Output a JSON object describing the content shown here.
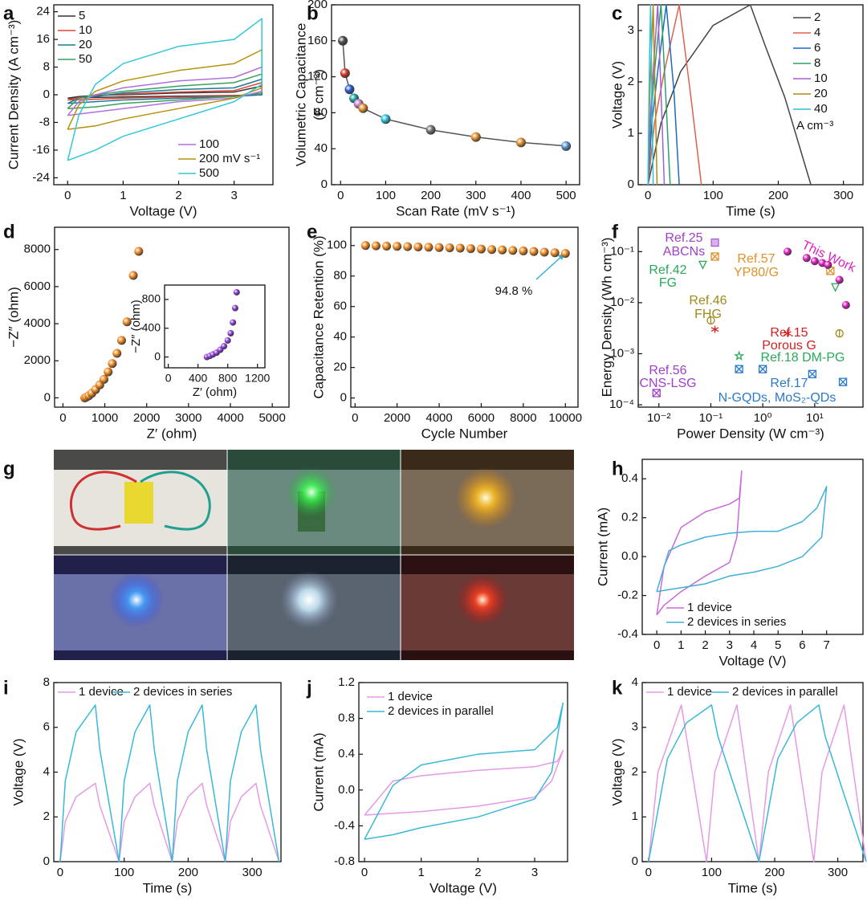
{
  "photo_panel": {
    "panel": "g"
  },
  "chart_data": [
    {
      "panel": "a",
      "type": "line",
      "xlabel": "Voltage (V)",
      "ylabel": "Current Density (A cm⁻³)",
      "xlim": [
        -0.25,
        3.7
      ],
      "ylim": [
        -26,
        26
      ],
      "xticks": [
        0,
        1,
        2,
        3
      ],
      "yticks": [
        -24,
        -16,
        -8,
        0,
        8,
        16,
        24
      ],
      "x": [
        0,
        0.2,
        0.5,
        1,
        2,
        3,
        3.5,
        3.5,
        3,
        2,
        1,
        0.5,
        0
      ],
      "series": [
        {
          "name": "5",
          "color": "#333333",
          "values": [
            -1,
            -0.5,
            -0.2,
            0,
            0.5,
            0.8,
            2.5,
            0,
            -0.2,
            -0.4,
            -0.6,
            -0.8,
            -1
          ]
        },
        {
          "name": "10",
          "color": "#e0453a",
          "values": [
            -1.5,
            -0.8,
            -0.3,
            0.2,
            0.8,
            1.2,
            3.5,
            0,
            -0.3,
            -0.6,
            -1,
            -1.3,
            -1.5
          ]
        },
        {
          "name": "20",
          "color": "#1a7a9a",
          "values": [
            -2.5,
            -1,
            -0.5,
            0.5,
            1.5,
            2,
            4.5,
            0,
            -0.5,
            -1,
            -1.5,
            -2,
            -2.5
          ]
        },
        {
          "name": "50",
          "color": "#3aa05a",
          "values": [
            -4,
            -1,
            0,
            1,
            2.5,
            3.5,
            6,
            0.5,
            -0.5,
            -1.5,
            -2.5,
            -3.5,
            -4
          ]
        },
        {
          "name": "100",
          "color": "#b070e0",
          "values": [
            -6,
            -2,
            0,
            2,
            4,
            5,
            8,
            1,
            -1,
            -2,
            -4,
            -5,
            -6
          ]
        },
        {
          "name": "200 mV s⁻¹",
          "color": "#b8900a",
          "values": [
            -10,
            -3,
            1,
            4,
            7,
            9,
            13,
            2,
            -1,
            -4,
            -7,
            -9,
            -10
          ]
        },
        {
          "name": "500",
          "color": "#30c8d8",
          "values": [
            -19,
            -6,
            3,
            9,
            14,
            16,
            22,
            3,
            -2,
            -7,
            -12,
            -16,
            -19
          ]
        }
      ]
    },
    {
      "panel": "b",
      "type": "line",
      "markers": "ball",
      "xlabel": "Scan Rate (mV s⁻¹)",
      "ylabel": [
        "Volumetric Capacitance",
        "(F cm⁻³)"
      ],
      "xlim": [
        -20,
        530
      ],
      "ylim": [
        0,
        200
      ],
      "xticks": [
        0,
        100,
        200,
        300,
        400,
        500
      ],
      "yticks": [
        0,
        40,
        80,
        120,
        160,
        200
      ],
      "x": [
        5,
        10,
        20,
        30,
        40,
        50,
        100,
        200,
        300,
        400,
        500
      ],
      "values": [
        160,
        124,
        106,
        96,
        90,
        85,
        73,
        61,
        53,
        47,
        43
      ],
      "line_color": "#555555",
      "point_colors": [
        "#4a4a4a",
        "#d03a2a",
        "#2a5ac8",
        "#1aa0a0",
        "#c080d0",
        "#e0902a",
        "#30c0d8",
        "#707070",
        "#e0902a",
        "#e0902a",
        "#5a90d0"
      ]
    },
    {
      "panel": "c",
      "type": "line",
      "xlabel": "Time (s)",
      "ylabel": "Voltage (V)",
      "legend_unit": "A cm⁻³",
      "xlim": [
        -15,
        330
      ],
      "ylim": [
        0,
        3.5
      ],
      "xticks": [
        0,
        100,
        200,
        300
      ],
      "yticks": [
        0,
        1,
        2,
        3
      ],
      "series": [
        {
          "name": "2",
          "color": "#444444",
          "x": [
            0,
            20,
            50,
            100,
            157,
            180,
            210,
            250
          ],
          "values": [
            0,
            1.2,
            2.2,
            3.1,
            3.5,
            2.7,
            1.7,
            0
          ]
        },
        {
          "name": "4",
          "color": "#e06050",
          "x": [
            0,
            10,
            25,
            48,
            55,
            65,
            82
          ],
          "values": [
            0,
            1.2,
            2.2,
            3.5,
            2.8,
            1.8,
            0
          ]
        },
        {
          "name": "6",
          "color": "#1a6ac0",
          "x": [
            0,
            6,
            15,
            28,
            33,
            40,
            48
          ],
          "values": [
            0,
            1.2,
            2.2,
            3.5,
            2.8,
            1.8,
            0
          ]
        },
        {
          "name": "8",
          "color": "#2aa06a",
          "x": [
            0,
            4,
            10,
            20,
            23,
            27,
            34
          ],
          "values": [
            0,
            1.2,
            2.2,
            3.5,
            2.8,
            1.8,
            0
          ]
        },
        {
          "name": "10",
          "color": "#a060d0",
          "x": [
            0,
            3,
            8,
            15,
            17,
            20,
            25
          ],
          "values": [
            0,
            1.2,
            2.2,
            3.5,
            2.8,
            1.8,
            0
          ]
        },
        {
          "name": "20",
          "color": "#b08a10",
          "x": [
            0,
            1.5,
            4,
            8,
            9,
            11,
            14
          ],
          "values": [
            0,
            1.2,
            2.2,
            3.5,
            2.8,
            1.8,
            0
          ]
        },
        {
          "name": "40",
          "color": "#30c0d8",
          "x": [
            0,
            1,
            2,
            4,
            5,
            6,
            8
          ],
          "values": [
            0,
            1.2,
            2.2,
            3.5,
            2.8,
            1.8,
            0
          ]
        }
      ]
    },
    {
      "panel": "d",
      "type": "scatter",
      "xlabel": "Z′ (ohm)",
      "ylabel": "−Z″ (ohm)",
      "color": "#f08a20",
      "xlim": [
        -200,
        5400
      ],
      "ylim": [
        -500,
        9200
      ],
      "xticks": [
        0,
        1000,
        2000,
        3000,
        4000,
        5000
      ],
      "yticks": [
        0,
        2000,
        4000,
        6000,
        8000
      ],
      "x": [
        520,
        560,
        620,
        690,
        780,
        880,
        980,
        1080,
        1180,
        1290,
        1400,
        1530,
        1680,
        1810
      ],
      "values": [
        0,
        40,
        120,
        250,
        450,
        700,
        1000,
        1400,
        1850,
        2400,
        3100,
        4100,
        6600,
        7900
      ]
    },
    {
      "type": "scatter",
      "xlabel": "Z′ (ohm)",
      "ylabel": "−Z″ (ohm)",
      "color": "#8a3ad8",
      "xlim": [
        -50,
        1300
      ],
      "ylim": [
        -150,
        1000
      ],
      "xticks": [
        0,
        400,
        800,
        1200
      ],
      "yticks": [
        0,
        400,
        800
      ],
      "x": [
        520,
        560,
        600,
        650,
        700,
        750,
        800,
        840,
        870,
        900,
        920
      ],
      "values": [
        0,
        15,
        35,
        60,
        100,
        150,
        230,
        330,
        480,
        680,
        900
      ]
    },
    {
      "panel": "e",
      "type": "scatter",
      "xlabel": "Cycle Number",
      "ylabel": "Capacitance Retention (%)",
      "color": "#f08a20",
      "annotation": "94.8 %",
      "xlim": [
        -200,
        10600
      ],
      "ylim": [
        -6,
        112
      ],
      "xticks": [
        0,
        2000,
        4000,
        6000,
        8000,
        10000
      ],
      "yticks": [
        0,
        20,
        40,
        60,
        80,
        100
      ],
      "x": [
        500,
        1000,
        1500,
        2000,
        2500,
        3000,
        3500,
        4000,
        4500,
        5000,
        5500,
        6000,
        6500,
        7000,
        7500,
        8000,
        8500,
        9000,
        9500,
        10000
      ],
      "values": [
        100,
        99.8,
        99.6,
        99.5,
        99.3,
        99.1,
        98.9,
        98.7,
        98.5,
        98.3,
        98.0,
        97.7,
        97.4,
        97.1,
        96.8,
        96.5,
        96.1,
        95.7,
        95.3,
        94.8
      ]
    },
    {
      "panel": "f",
      "type": "scatter",
      "xscale": "log",
      "yscale": "log",
      "xlabel": "Power Density (W cm⁻³)",
      "ylabel": "Energy Density (Wh cm⁻³)",
      "xlim": [
        0.004,
        85
      ],
      "ylim": [
        9e-05,
        0.3
      ],
      "xticks": [
        {
          "value": 0.01,
          "label": "10⁻²"
        },
        {
          "value": 0.1,
          "label": "10⁻¹"
        },
        {
          "value": 1,
          "label": "10⁰"
        },
        {
          "value": 10,
          "label": "10¹"
        }
      ],
      "yticks": [
        {
          "value": 0.0001,
          "label": "10⁻⁴"
        },
        {
          "value": 0.001,
          "label": "10⁻³"
        },
        {
          "value": 0.01,
          "label": "10⁻²"
        },
        {
          "value": 0.1,
          "label": "10⁻¹"
        }
      ],
      "series": [
        {
          "name_lines": [
            "Ref.25",
            "ABCNs"
          ],
          "color": "#a040c8",
          "marker": "square",
          "x": [
            0.12
          ],
          "values": [
            0.15
          ]
        },
        {
          "name_lines": [
            "Ref.42",
            "FG"
          ],
          "color": "#2aa85a",
          "marker": "tri-down",
          "x": [
            0.07,
            25
          ],
          "values": [
            0.055,
            0.02
          ]
        },
        {
          "name_lines": [
            "Ref.57",
            "YP80/G"
          ],
          "color": "#e0902a",
          "marker": "boxed-x",
          "x": [
            0.12,
            20
          ],
          "values": [
            0.08,
            0.042
          ]
        },
        {
          "name_lines": [
            "Ref.46",
            "FHG"
          ],
          "color": "#a08a1a",
          "marker": "circle-bar",
          "x": [
            0.1,
            30
          ],
          "values": [
            0.0045,
            0.0025
          ]
        },
        {
          "name_lines": [
            "Ref.15",
            "Porous G"
          ],
          "color": "#d02020",
          "marker": "asterisk",
          "x": [
            0.12,
            3
          ],
          "values": [
            0.003,
            0.0025
          ]
        },
        {
          "name_lines": [
            "Ref.18 DM-PG"
          ],
          "color": "#2aa85a",
          "marker": "star",
          "x": [
            0.35
          ],
          "values": [
            0.0009
          ]
        },
        {
          "name_lines": [
            "Ref.17",
            "N-GQDs, MoS₂-QDs"
          ],
          "color": "#2a7ac8",
          "marker": "boxed-x",
          "x": [
            0.35,
            1,
            9,
            35
          ],
          "values": [
            0.0005,
            0.0005,
            0.0004,
            0.00028
          ]
        },
        {
          "name_lines": [
            "Ref.56",
            "CNS-LSG"
          ],
          "color": "#a040c8",
          "marker": "boxed-x",
          "x": [
            0.009
          ],
          "values": [
            0.00017
          ]
        },
        {
          "name_lines": [
            "This Work"
          ],
          "color": "#e020c0",
          "marker": "circle",
          "x": [
            3,
            7,
            10,
            14,
            18,
            30,
            40
          ],
          "values": [
            0.1,
            0.075,
            0.065,
            0.06,
            0.055,
            0.028,
            0.009
          ]
        }
      ]
    },
    {
      "panel": "h",
      "type": "line",
      "xlabel": "Voltage (V)",
      "ylabel": "Current (mA)",
      "xlim": [
        -0.6,
        8.5
      ],
      "ylim": [
        -0.4,
        0.5
      ],
      "xticks": [
        0,
        1,
        2,
        3,
        4,
        5,
        6,
        7
      ],
      "yticks": [
        -0.4,
        -0.2,
        {
          "value": 0,
          "label": "0.0"
        },
        0.2,
        0.4
      ],
      "series": [
        {
          "name": "1 device",
          "color": "#c86ad8",
          "x": [
            0,
            0.3,
            1,
            2,
            3,
            3.4,
            3.5,
            3.3,
            3,
            2,
            1,
            0.3,
            0
          ],
          "values": [
            -0.3,
            -0.05,
            0.15,
            0.23,
            0.27,
            0.3,
            0.44,
            0.1,
            -0.03,
            -0.1,
            -0.18,
            -0.25,
            -0.3
          ]
        },
        {
          "name": "2 devices in series",
          "color": "#40b0d8",
          "x": [
            0,
            0.5,
            1,
            2,
            3,
            4,
            5,
            6,
            6.6,
            7,
            6.8,
            6,
            5,
            4,
            3,
            2,
            1,
            0.5,
            0
          ],
          "values": [
            -0.18,
            0.03,
            0.06,
            0.1,
            0.12,
            0.13,
            0.13,
            0.18,
            0.25,
            0.36,
            0.1,
            0.0,
            -0.05,
            -0.08,
            -0.1,
            -0.14,
            -0.16,
            -0.17,
            -0.18
          ]
        }
      ]
    },
    {
      "panel": "i",
      "type": "line",
      "xlabel": "Time (s)",
      "ylabel": "Voltage (V)",
      "xlim": [
        -10,
        345
      ],
      "ylim": [
        0,
        8
      ],
      "xticks": [
        0,
        100,
        200,
        300
      ],
      "yticks": [
        0,
        2,
        4,
        6,
        8
      ],
      "x": [
        0,
        8,
        25,
        55,
        62,
        92,
        100,
        117,
        140,
        147,
        175,
        183,
        200,
        222,
        229,
        258,
        266,
        283,
        306,
        313,
        342
      ],
      "series": [
        {
          "name": "1 device",
          "color": "#e59ae5",
          "values": [
            0,
            1.8,
            2.9,
            3.5,
            2.5,
            0,
            1.8,
            2.9,
            3.5,
            2.5,
            0,
            1.8,
            2.9,
            3.5,
            2.5,
            0,
            1.8,
            2.9,
            3.5,
            2.5,
            0
          ]
        },
        {
          "name": "2 devices in series",
          "color": "#3ab8d8",
          "values": [
            0,
            3.6,
            5.8,
            7,
            5,
            0,
            3.6,
            5.8,
            7,
            5,
            0,
            3.6,
            5.8,
            7,
            5,
            0,
            3.6,
            5.8,
            7,
            5,
            0
          ]
        }
      ]
    },
    {
      "panel": "j",
      "type": "line",
      "xlabel": "Voltage (V)",
      "ylabel": "Current (mA)",
      "xlim": [
        -0.1,
        3.58
      ],
      "ylim": [
        -0.8,
        1.2
      ],
      "xticks": [
        0,
        1,
        2,
        3
      ],
      "yticks": [
        -0.8,
        -0.4,
        {
          "value": 0,
          "label": "0.0"
        },
        0.4,
        0.8,
        1.2
      ],
      "x": [
        0,
        0.5,
        1,
        2,
        3,
        3.4,
        3.5,
        3.3,
        3,
        2,
        1,
        0.5,
        0
      ],
      "series": [
        {
          "name": "1 device",
          "color": "#e59ae5",
          "values": [
            -0.28,
            0.1,
            0.16,
            0.22,
            0.26,
            0.32,
            0.44,
            0.1,
            -0.08,
            -0.18,
            -0.24,
            -0.26,
            -0.28
          ]
        },
        {
          "name": "2 devices in parallel",
          "color": "#3ab8d8",
          "values": [
            -0.55,
            0.05,
            0.28,
            0.4,
            0.45,
            0.7,
            0.97,
            0.2,
            -0.1,
            -0.3,
            -0.42,
            -0.5,
            -0.55
          ]
        }
      ]
    },
    {
      "panel": "k",
      "type": "line",
      "xlabel": "Time (s)",
      "ylabel": "Voltage (V)",
      "xlim": [
        -10,
        340
      ],
      "ylim": [
        0,
        4
      ],
      "xticks": [
        0,
        100,
        200,
        300
      ],
      "yticks": [
        0,
        1,
        2,
        3,
        4
      ],
      "series": [
        {
          "name": "1 device",
          "color": "#e59ae5",
          "x": [
            0,
            15,
            52,
            92,
            105,
            140,
            175,
            190,
            225,
            262,
            275,
            310,
            345
          ],
          "values": [
            0,
            2,
            3.5,
            0,
            2,
            3.5,
            0,
            2,
            3.5,
            0,
            2,
            3.5,
            0
          ]
        },
        {
          "name": "2 devices in parallel",
          "color": "#3ab8d8",
          "x": [
            0,
            30,
            60,
            100,
            110,
            140,
            175,
            205,
            235,
            270,
            280,
            310,
            345
          ],
          "values": [
            0,
            2.3,
            3.1,
            3.5,
            2.8,
            1.5,
            0,
            2.3,
            3.1,
            3.5,
            2.8,
            1.5,
            0
          ]
        }
      ]
    }
  ]
}
